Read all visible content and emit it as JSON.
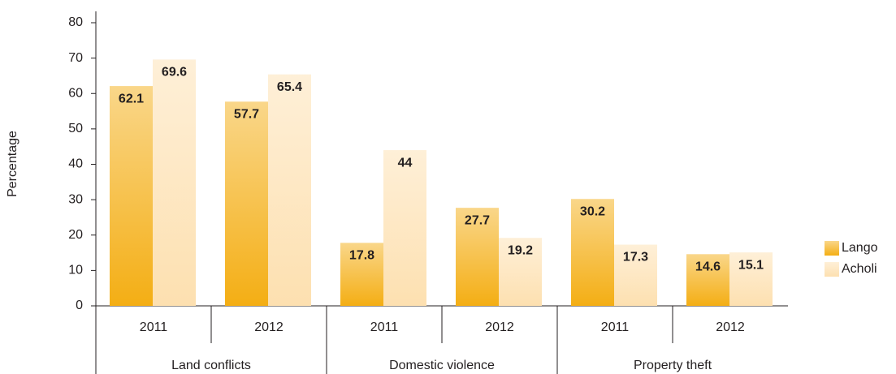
{
  "chart_data": {
    "type": "bar",
    "y_label": "Percentage",
    "categories": [
      "2011",
      "2012",
      "2011",
      "2012",
      "2011",
      "2012"
    ],
    "groups": [
      "Land conflicts",
      "Domestic violence",
      "Property theft"
    ],
    "series": [
      {
        "name": "Lango",
        "color": "#f4ae14",
        "values": [
          62.1,
          57.7,
          17.8,
          27.7,
          30.2,
          14.6
        ]
      },
      {
        "name": "Acholi",
        "color": "#fde0b0",
        "values": [
          69.6,
          65.4,
          44,
          19.2,
          17.3,
          15.1
        ]
      }
    ],
    "ylim": [
      0,
      80
    ],
    "yticks": [
      0,
      10,
      20,
      30,
      40,
      50,
      60,
      70,
      80
    ],
    "legend": "right"
  }
}
